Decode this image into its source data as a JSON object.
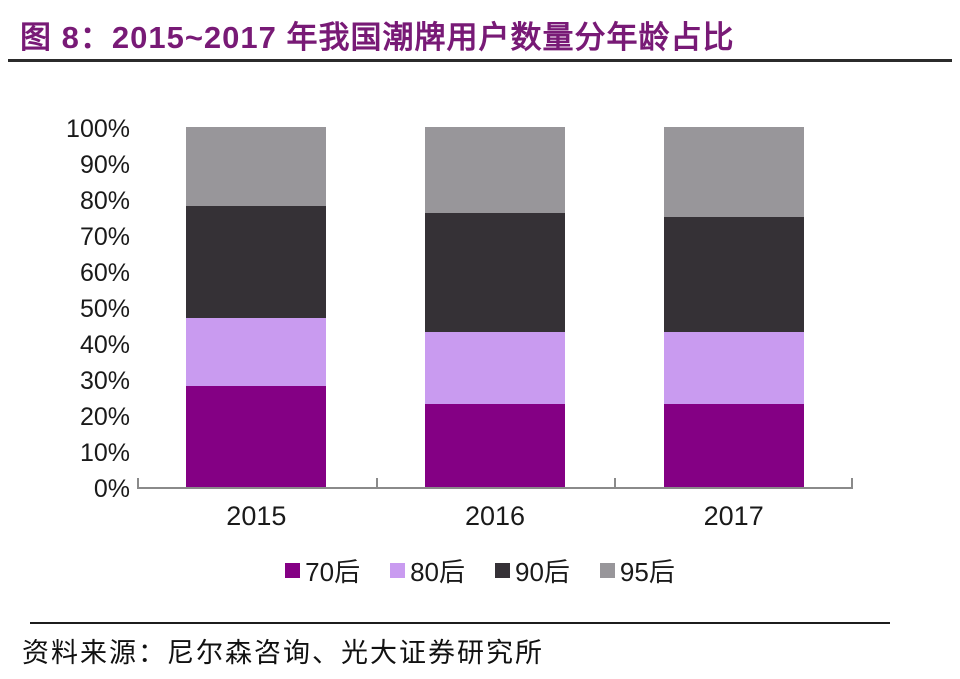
{
  "header": {
    "title": "图 8：2015~2017 年我国潮牌用户数量分年龄占比",
    "title_color": "#781A76"
  },
  "chart_data": {
    "type": "bar",
    "stacked": true,
    "title": "2015~2017 年我国潮牌用户数量分年龄占比",
    "categories": [
      "2015",
      "2016",
      "2017"
    ],
    "series": [
      {
        "name": "70后",
        "color": "#840084",
        "values": [
          28,
          23,
          23
        ]
      },
      {
        "name": "80后",
        "color": "#C99BF0",
        "values": [
          19,
          20,
          20
        ]
      },
      {
        "name": "90后",
        "color": "#353136",
        "values": [
          31,
          33,
          32
        ]
      },
      {
        "name": "95后",
        "color": "#98969A",
        "values": [
          22,
          24,
          25
        ]
      }
    ],
    "xlabel": "",
    "ylabel": "",
    "ylim": [
      0,
      100
    ],
    "ytick_labels": [
      "0%",
      "10%",
      "20%",
      "30%",
      "40%",
      "50%",
      "60%",
      "70%",
      "80%",
      "90%",
      "100%"
    ],
    "grid": false,
    "legend_position": "bottom",
    "axis_color": "#8a8a8a"
  },
  "footer": {
    "source": "资料来源：尼尔森咨询、光大证券研究所"
  }
}
